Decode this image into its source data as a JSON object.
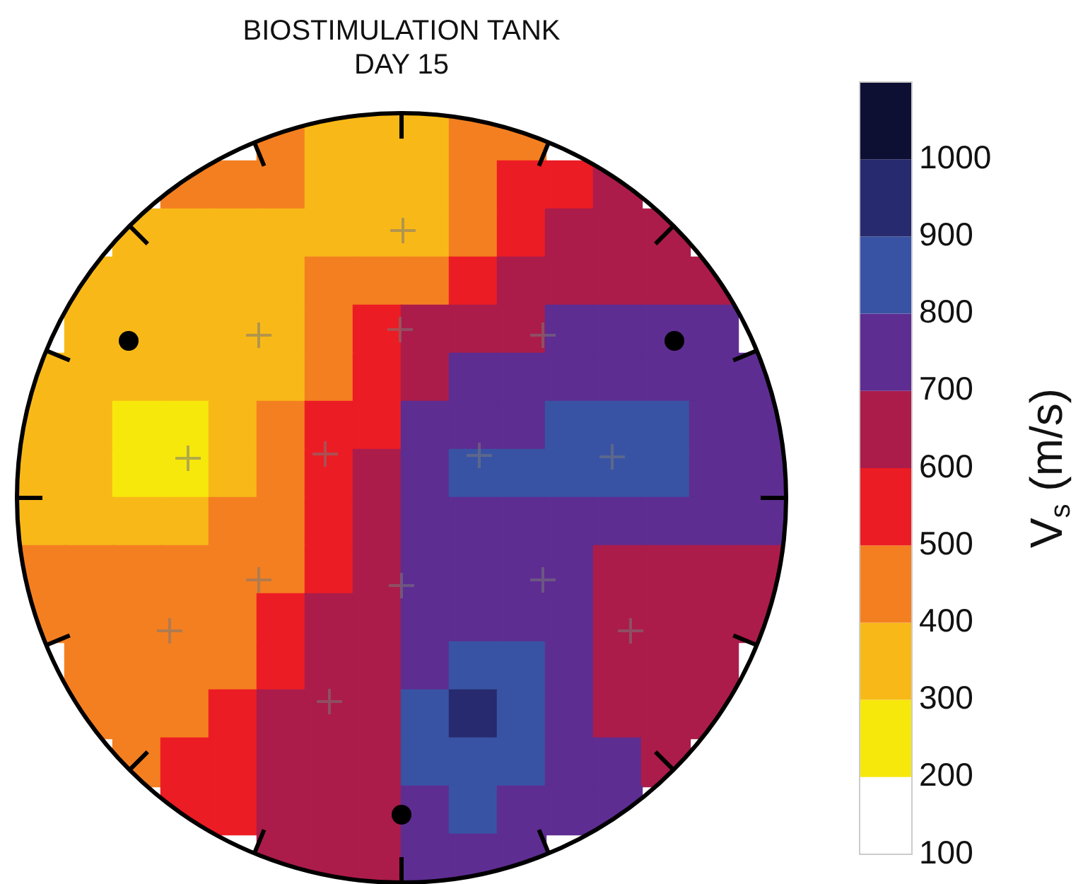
{
  "chart_data": {
    "type": "heatmap",
    "title": "BIOSTIMULATION TANK",
    "subtitle": "DAY 15",
    "categories": [
      null,
      null,
      null,
      null,
      null,
      null,
      null,
      null,
      null,
      null,
      null,
      null,
      null,
      null,
      null,
      null
    ],
    "y_categories": [
      null,
      null,
      null,
      null,
      null,
      null,
      null,
      null,
      null,
      null,
      null,
      null,
      null,
      null,
      null,
      null
    ],
    "cells": [
      [
        null,
        null,
        null,
        null,
        null,
        450,
        350,
        350,
        350,
        450,
        450,
        null,
        null,
        null,
        null,
        null
      ],
      [
        null,
        null,
        null,
        450,
        450,
        450,
        350,
        350,
        350,
        450,
        550,
        550,
        650,
        null,
        null,
        null
      ],
      [
        null,
        null,
        350,
        350,
        350,
        350,
        350,
        350,
        350,
        450,
        550,
        650,
        650,
        650,
        null,
        null
      ],
      [
        null,
        350,
        350,
        350,
        350,
        350,
        450,
        450,
        450,
        550,
        650,
        650,
        650,
        650,
        650,
        null
      ],
      [
        null,
        350,
        350,
        350,
        350,
        350,
        450,
        550,
        650,
        650,
        650,
        750,
        750,
        750,
        750,
        null
      ],
      [
        350,
        350,
        350,
        350,
        350,
        350,
        450,
        550,
        650,
        750,
        750,
        750,
        750,
        750,
        750,
        750
      ],
      [
        350,
        350,
        250,
        250,
        350,
        450,
        550,
        550,
        750,
        750,
        750,
        850,
        850,
        850,
        750,
        750
      ],
      [
        350,
        350,
        250,
        250,
        350,
        450,
        550,
        650,
        750,
        850,
        850,
        850,
        850,
        850,
        750,
        750
      ],
      [
        350,
        350,
        350,
        350,
        450,
        450,
        550,
        650,
        750,
        750,
        750,
        750,
        750,
        750,
        750,
        750
      ],
      [
        450,
        450,
        450,
        450,
        450,
        450,
        550,
        650,
        750,
        750,
        750,
        750,
        650,
        650,
        650,
        650
      ],
      [
        450,
        450,
        450,
        450,
        450,
        550,
        650,
        650,
        750,
        750,
        750,
        750,
        650,
        650,
        650,
        650
      ],
      [
        null,
        450,
        450,
        450,
        450,
        550,
        650,
        650,
        750,
        850,
        850,
        750,
        650,
        650,
        650,
        null
      ],
      [
        null,
        450,
        450,
        450,
        550,
        650,
        650,
        650,
        850,
        950,
        850,
        750,
        650,
        650,
        650,
        null
      ],
      [
        null,
        null,
        450,
        550,
        550,
        650,
        650,
        650,
        850,
        850,
        850,
        750,
        750,
        650,
        null,
        null
      ],
      [
        null,
        null,
        null,
        550,
        550,
        650,
        650,
        650,
        750,
        850,
        750,
        750,
        750,
        null,
        null,
        null
      ],
      [
        null,
        null,
        null,
        null,
        null,
        650,
        650,
        650,
        750,
        750,
        750,
        null,
        null,
        null,
        null,
        null
      ]
    ],
    "clim": [
      100,
      1100
    ],
    "cticks": [
      100,
      200,
      300,
      400,
      500,
      600,
      700,
      800,
      900,
      1000
    ],
    "clabel": "V$_{s}$ (m/s)",
    "tick_labels": false
  }
}
